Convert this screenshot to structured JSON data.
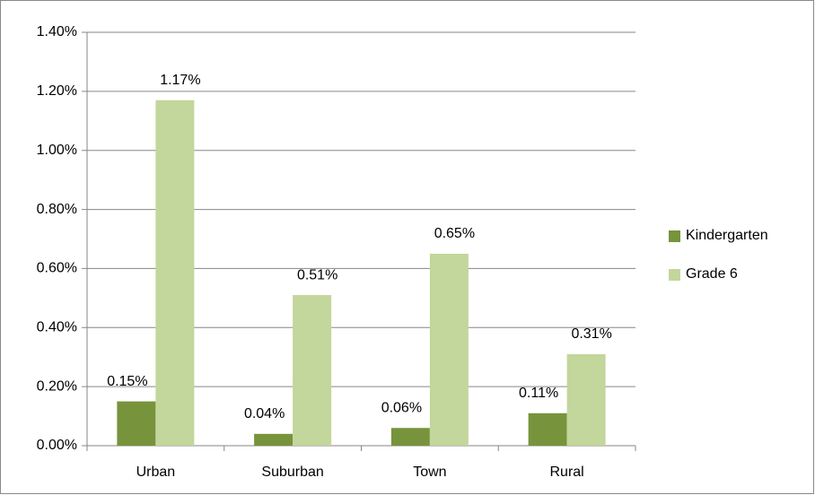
{
  "chart_data": {
    "type": "bar",
    "categories": [
      "Urban",
      "Suburban",
      "Town",
      "Rural"
    ],
    "series": [
      {
        "name": "Kindergarten",
        "color": "#77933c",
        "values": [
          0.15,
          0.04,
          0.06,
          0.11
        ],
        "value_labels": [
          "0.15%",
          "0.04%",
          "0.06%",
          "0.11%"
        ]
      },
      {
        "name": "Grade 6",
        "color": "#c3d69b",
        "values": [
          1.17,
          0.51,
          0.65,
          0.31
        ],
        "value_labels": [
          "1.17%",
          "0.51%",
          "0.65%",
          "0.31%"
        ]
      }
    ],
    "ylim": [
      0,
      1.4
    ],
    "yticks": [
      {
        "value": 0,
        "label": "0.00%"
      },
      {
        "value": 0.2,
        "label": "0.20%"
      },
      {
        "value": 0.4,
        "label": "0.40%"
      },
      {
        "value": 0.6,
        "label": "0.60%"
      },
      {
        "value": 0.8,
        "label": "0.80%"
      },
      {
        "value": 1.0,
        "label": "1.00%"
      },
      {
        "value": 1.2,
        "label": "1.20%"
      },
      {
        "value": 1.4,
        "label": "1.40%"
      }
    ],
    "grid": true,
    "legend": "right"
  }
}
